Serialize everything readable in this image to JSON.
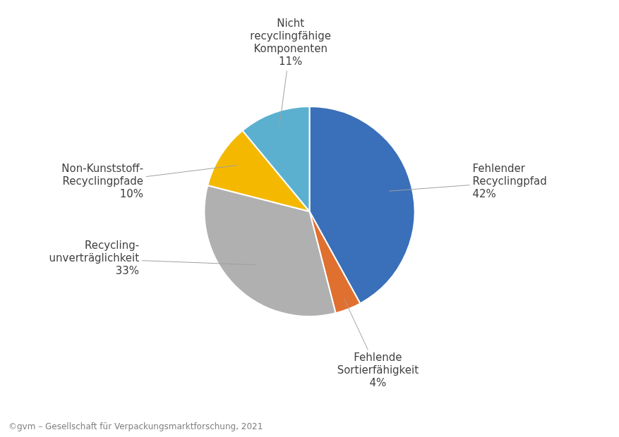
{
  "chart_data": {
    "type": "pie",
    "categories": [
      "Fehlender\nRecyclingpfad",
      "Fehlende\nSortierfähigkeit",
      "Recycling-\nunverträglichkeit",
      "Non-Kunststoff-\nRecyclingpfade",
      "Nicht\nrecyclingfähige\nKomponenten"
    ],
    "values": [
      42,
      4,
      33,
      10,
      11
    ],
    "value_labels": [
      "42%",
      "4%",
      "33%",
      "10%",
      "11%"
    ],
    "data_labels": true,
    "colors": [
      "#3a6fba",
      "#e07030",
      "#b0b0b0",
      "#f5b800",
      "#5bb0d0"
    ],
    "annotations": [
      "©gvm – Gesellschaft für Verpackungsmarktforschung, 2021"
    ]
  }
}
